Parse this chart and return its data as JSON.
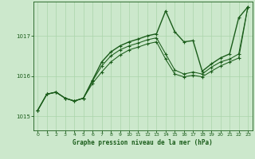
{
  "title": "Graphe pression niveau de la mer (hPa)",
  "ylabel_ticks": [
    1015,
    1016,
    1017
  ],
  "xlim": [
    -0.5,
    23.5
  ],
  "ylim": [
    1014.65,
    1017.85
  ],
  "bg_color": "#cce8cc",
  "grid_color": "#aad4aa",
  "line_color": "#1a5c1a",
  "series": [
    [
      1015.15,
      1015.55,
      1015.6,
      1015.45,
      1015.38,
      1015.45,
      1015.9,
      1016.35,
      1016.6,
      1016.75,
      1016.85,
      1016.92,
      1017.0,
      1017.05,
      1017.62,
      1017.1,
      1016.85,
      1016.88,
      1016.12,
      1016.3,
      1016.45,
      1016.55,
      1017.45,
      1017.72
    ],
    [
      1015.15,
      1015.55,
      1015.6,
      1015.45,
      1015.38,
      1015.45,
      1015.88,
      1016.25,
      1016.5,
      1016.65,
      1016.75,
      1016.82,
      1016.9,
      1016.95,
      1016.55,
      1016.15,
      1016.05,
      1016.1,
      1016.05,
      1016.22,
      1016.35,
      1016.42,
      1016.55,
      1017.72
    ],
    [
      1015.15,
      1015.55,
      1015.6,
      1015.45,
      1015.38,
      1015.45,
      1015.82,
      1016.1,
      1016.35,
      1016.52,
      1016.65,
      1016.72,
      1016.8,
      1016.85,
      1016.42,
      1016.05,
      1015.98,
      1016.02,
      1015.98,
      1016.12,
      1016.25,
      1016.35,
      1016.45,
      1017.72
    ]
  ],
  "xticks": [
    0,
    1,
    2,
    3,
    4,
    5,
    6,
    7,
    8,
    9,
    10,
    11,
    12,
    13,
    14,
    15,
    16,
    17,
    18,
    19,
    20,
    21,
    22,
    23
  ],
  "markersize": 2.5
}
